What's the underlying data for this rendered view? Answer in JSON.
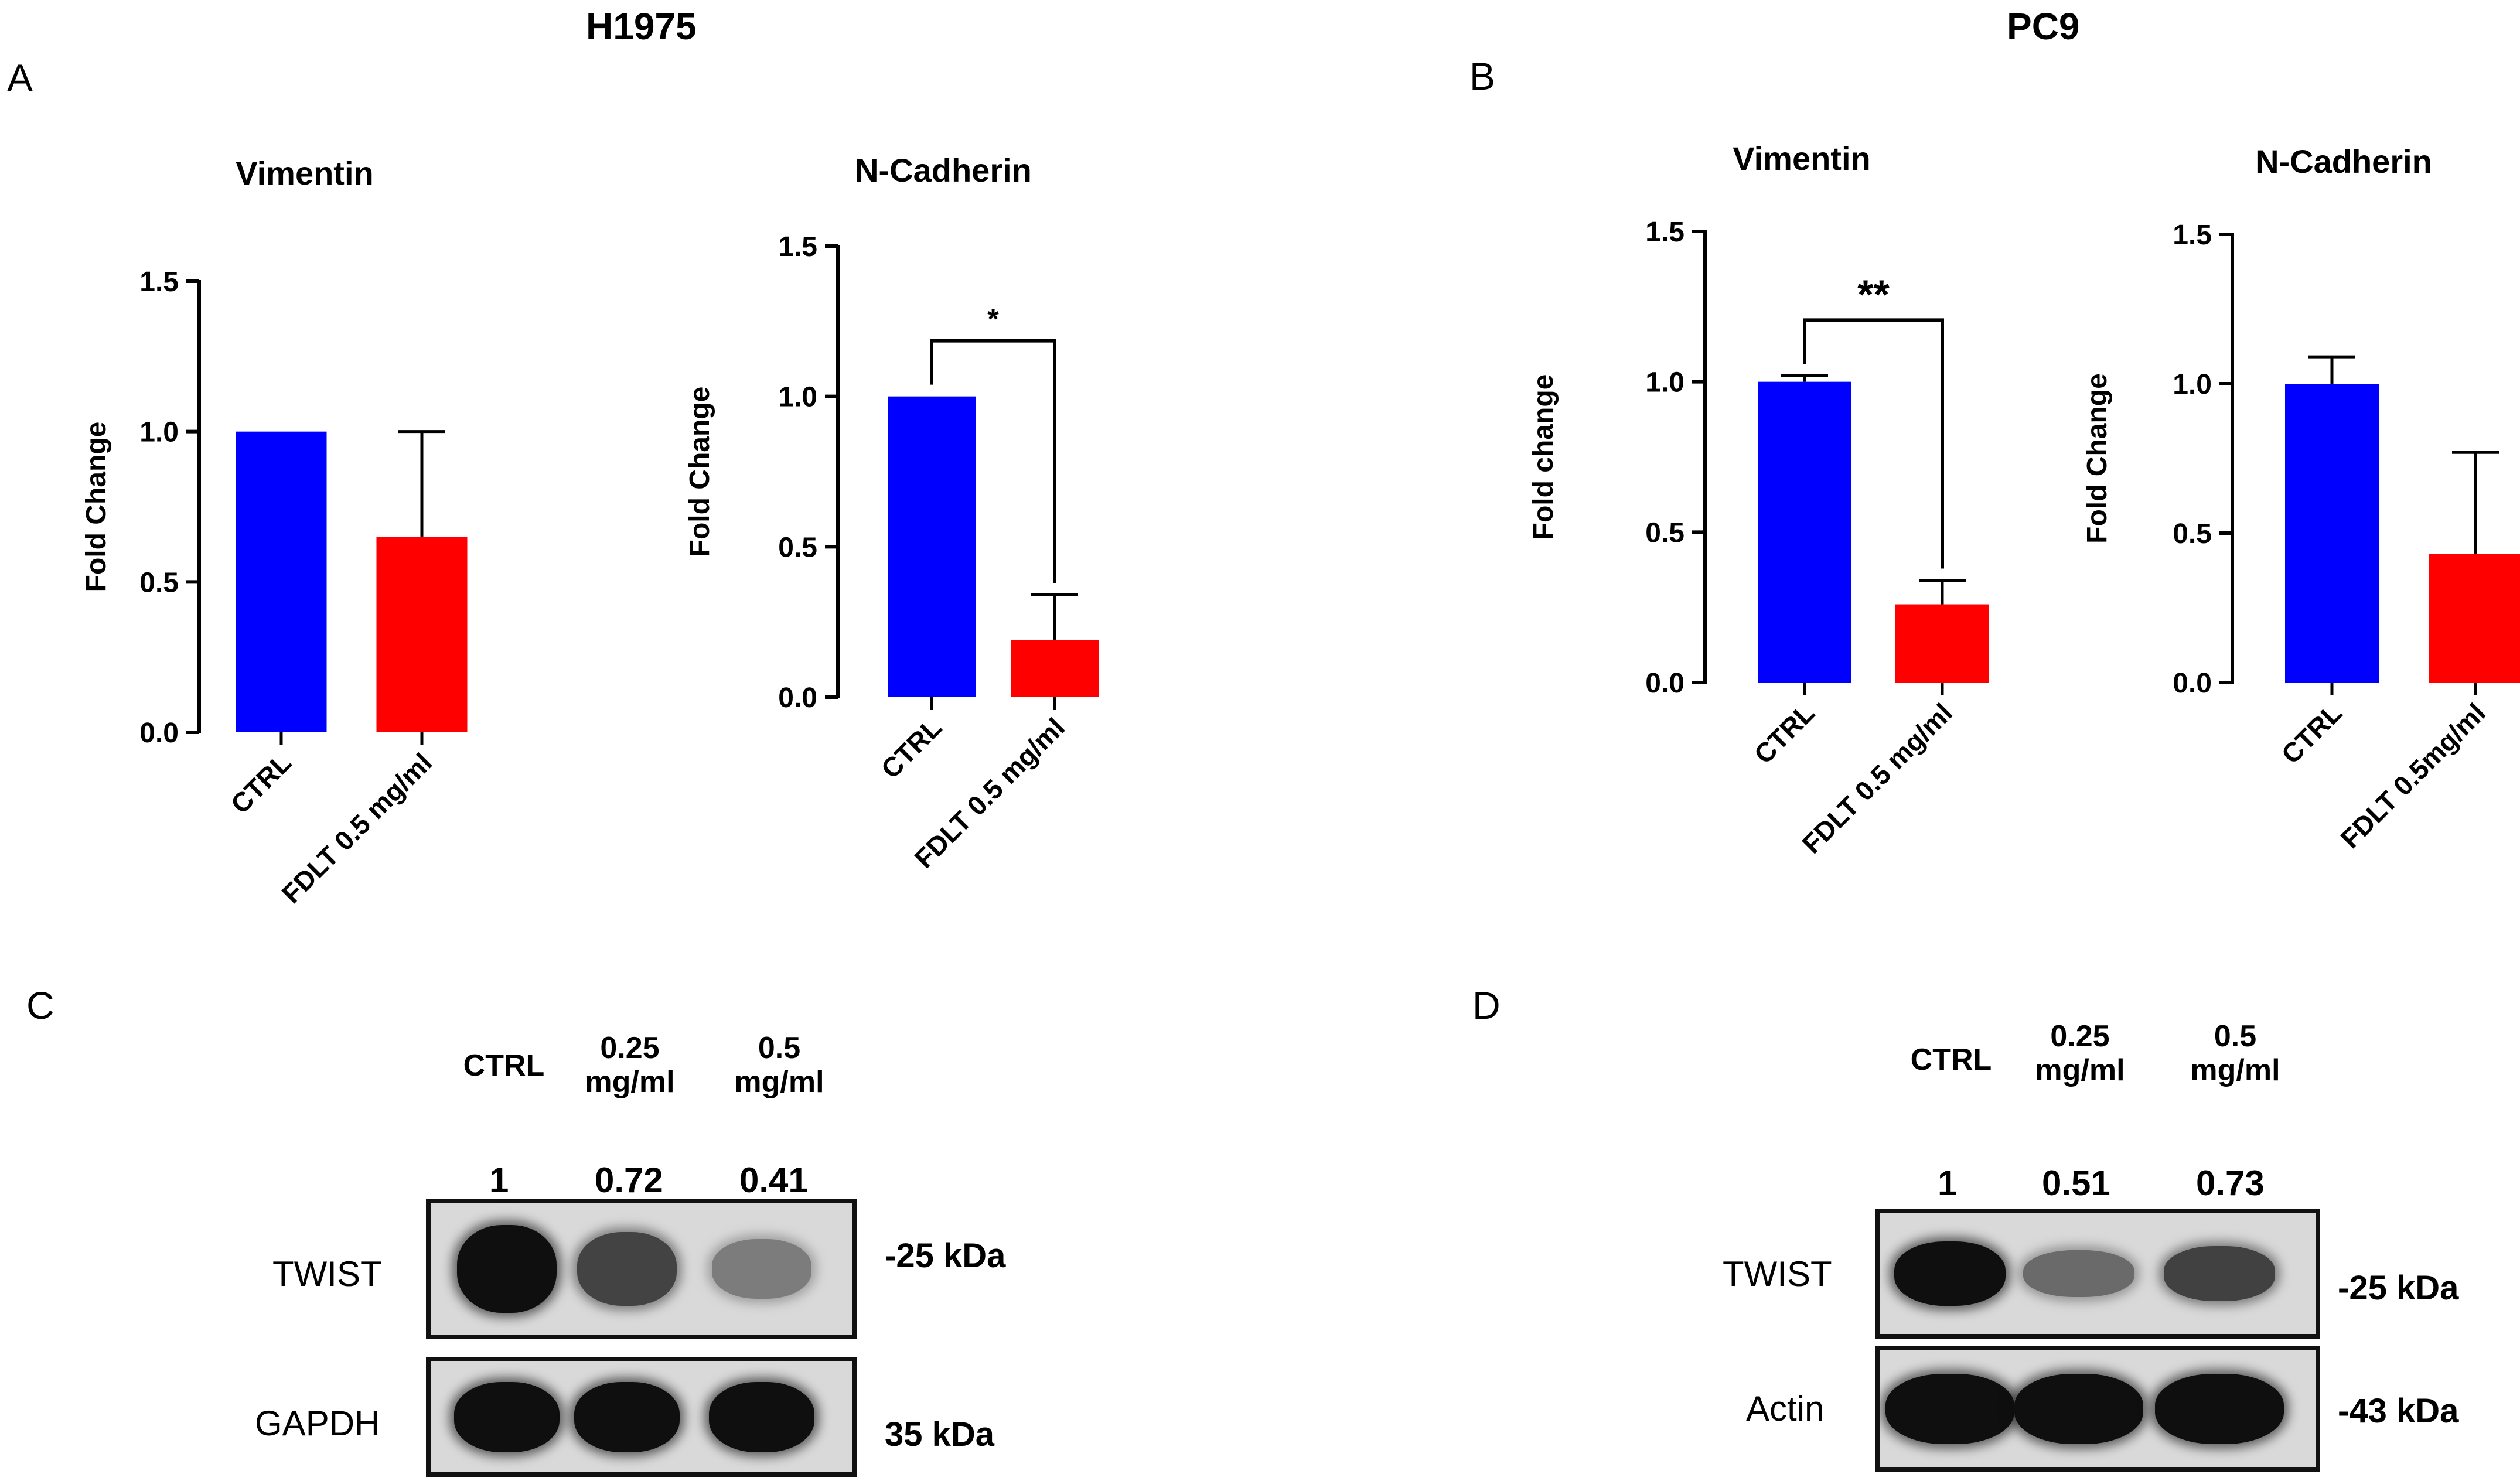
{
  "headers": {
    "left": "H1975",
    "right": "PC9"
  },
  "panel_letters": {
    "a": "A",
    "b": "B",
    "c": "C",
    "d": "D"
  },
  "colors": {
    "ctrl": "#0000ff",
    "treated": "#ff0000"
  },
  "chart_data": [
    {
      "type": "bar",
      "panel": "A",
      "title": "Vimentin",
      "ylabel": "Fold Change",
      "ylim": [
        0,
        1.5
      ],
      "yticks": [
        "0.0",
        "0.5",
        "1.0",
        "1.5"
      ],
      "categories": [
        "CTRL",
        "FDLT 0.5 mg/ml"
      ],
      "values": [
        1.0,
        0.65
      ],
      "errors": [
        0,
        0.35
      ],
      "significance": ""
    },
    {
      "type": "bar",
      "panel": "A",
      "title": "N-Cadherin",
      "ylabel": "Fold Change",
      "ylim": [
        0,
        1.5
      ],
      "yticks": [
        "0.0",
        "0.5",
        "1.0",
        "1.5"
      ],
      "categories": [
        "CTRL",
        "FDLT 0.5 mg/ml"
      ],
      "values": [
        1.0,
        0.19
      ],
      "errors": [
        0,
        0.15
      ],
      "significance": "*"
    },
    {
      "type": "bar",
      "panel": "B",
      "title": "Vimentin",
      "ylabel": "Fold change",
      "ylim": [
        0,
        1.5
      ],
      "yticks": [
        "0.0",
        "0.5",
        "1.0",
        "1.5"
      ],
      "categories": [
        "CTRL",
        "FDLT 0.5 mg/ml"
      ],
      "values": [
        1.0,
        0.26
      ],
      "errors": [
        0.02,
        0.08
      ],
      "significance": "**"
    },
    {
      "type": "bar",
      "panel": "B",
      "title": "N-Cadherin",
      "ylabel": "Fold Change",
      "ylim": [
        0,
        1.5
      ],
      "yticks": [
        "0.0",
        "0.5",
        "1.0",
        "1.5"
      ],
      "categories": [
        "CTRL",
        "FDLT 0.5mg/ml"
      ],
      "values": [
        1.0,
        0.43
      ],
      "errors": [
        0.09,
        0.34
      ],
      "significance": ""
    }
  ],
  "blots": {
    "c": {
      "lanes": [
        {
          "line1": "CTRL",
          "line2": ""
        },
        {
          "line1": "0.25",
          "line2": "mg/ml"
        },
        {
          "line1": "0.5",
          "line2": "mg/ml"
        }
      ],
      "ratios": [
        "1",
        "0.72",
        "0.41"
      ],
      "rows": [
        {
          "label": "TWIST",
          "kda": "-25 kDa",
          "intensity": [
            1.0,
            0.72,
            0.41
          ]
        },
        {
          "label": "GAPDH",
          "kda": "35 kDa",
          "intensity": [
            1.0,
            1.0,
            1.0
          ]
        }
      ]
    },
    "d": {
      "lanes": [
        {
          "line1": "CTRL",
          "line2": ""
        },
        {
          "line1": "0.25",
          "line2": "mg/ml"
        },
        {
          "line1": "0.5",
          "line2": "mg/ml"
        }
      ],
      "ratios": [
        "1",
        "0.51",
        "0.73"
      ],
      "rows": [
        {
          "label": "TWIST",
          "kda": "-25 kDa",
          "intensity": [
            1.0,
            0.51,
            0.73
          ]
        },
        {
          "label": "Actin",
          "kda": "-43 kDa",
          "intensity": [
            1.0,
            1.0,
            1.0
          ]
        }
      ]
    }
  }
}
